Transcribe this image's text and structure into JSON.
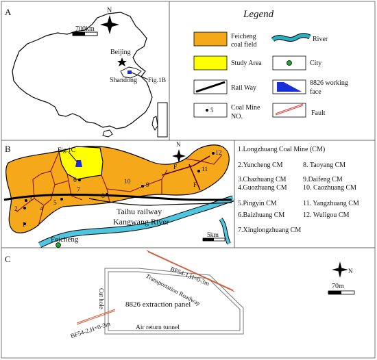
{
  "panel_a": {
    "label": "A",
    "north": "N",
    "scale": "700km",
    "beijing": "Beijing",
    "shandong": "Shandong",
    "fig_ref": "Fig.1B"
  },
  "legend": {
    "title": "Legend",
    "items": [
      {
        "label_1": "Feicheng",
        "label_2": "coal field",
        "color": "#f5a91a"
      },
      {
        "label_1": "River",
        "label_2": "",
        "color": "#25b1bf"
      },
      {
        "label_1": "Study Area",
        "label_2": "",
        "color": "#ffff00"
      },
      {
        "label_1": "City",
        "label_2": "",
        "color": "#1fa52e"
      },
      {
        "label_1": "Rail Way",
        "label_2": "",
        "color": "#000000"
      },
      {
        "label_1": "8826 working",
        "label_2": "face",
        "color": "#1a2fd8"
      },
      {
        "label_1": "Coal Mine",
        "label_2": "NO.",
        "color": "#000000"
      },
      {
        "label_1": "Fault",
        "label_2": "",
        "color": "#d94040"
      }
    ],
    "coal_mine_symbol_number": "5"
  },
  "panel_b": {
    "label": "B",
    "fig_ref": "Fig.1C",
    "north": "N",
    "railway": "Taihu railway",
    "river": "Kangwang River",
    "city": "Feicheng",
    "scale": "5km",
    "fault_labels": [
      "F",
      "F"
    ],
    "mine_numbers": [
      "1",
      "2",
      "3",
      "4",
      "5",
      "6",
      "7",
      "8",
      "9",
      "10",
      "11",
      "12"
    ],
    "mines": [
      "1.Longzhuang Coal Mine (CM)",
      "2.Yuncheng CM",
      "3.Chazhuang CM",
      "4.Guozhuang CM",
      "5.Pingyin CM",
      "6.Baizhuang CM",
      "7.Xinglongzhuang CM",
      "8. Taoyang CM",
      "9.Daifeng CM",
      "10. Caozhuang CM",
      "11. Yangzhuang CM",
      "12. Wuligou CM"
    ]
  },
  "panel_c": {
    "label": "C",
    "fault_1": "BF54-1,H=0-3m",
    "fault_2": "BF54-2,H=0-3m",
    "roadway": "Transportation Roadway",
    "cut_hole": "Cut hole",
    "panel_name": "8826 extraction panel",
    "tunnel": "Air return tunnel",
    "north": "N",
    "scale": "70m"
  }
}
